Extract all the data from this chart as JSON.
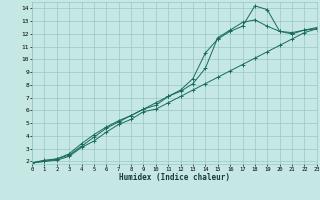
{
  "xlabel": "Humidex (Indice chaleur)",
  "bg_color": "#c5e8e5",
  "grid_color": "#9ac8c4",
  "line_color": "#1a6b5a",
  "xlim": [
    0,
    23
  ],
  "ylim": [
    1.8,
    14.5
  ],
  "xticks": [
    0,
    1,
    2,
    3,
    4,
    5,
    6,
    7,
    8,
    9,
    10,
    11,
    12,
    13,
    14,
    15,
    16,
    17,
    18,
    19,
    20,
    21,
    22,
    23
  ],
  "yticks": [
    2,
    3,
    4,
    5,
    6,
    7,
    8,
    9,
    10,
    11,
    12,
    13,
    14
  ],
  "series": [
    {
      "x": [
        0,
        1,
        2,
        3,
        4,
        5,
        6,
        7,
        8,
        9,
        10,
        11,
        12,
        13,
        14,
        15,
        16,
        17,
        18,
        19,
        20,
        21,
        22,
        23
      ],
      "y": [
        1.9,
        2.1,
        2.2,
        2.5,
        3.2,
        3.9,
        4.6,
        5.1,
        5.6,
        6.1,
        6.6,
        7.1,
        7.6,
        8.5,
        10.5,
        11.6,
        12.2,
        12.6,
        14.2,
        13.9,
        12.2,
        12.1,
        12.3,
        12.4
      ]
    },
    {
      "x": [
        0,
        1,
        2,
        3,
        4,
        5,
        6,
        7,
        8,
        9,
        10,
        11,
        12,
        13,
        14,
        15,
        16,
        17,
        18,
        19,
        20,
        21,
        22,
        23
      ],
      "y": [
        1.9,
        2.0,
        2.2,
        2.6,
        3.4,
        4.1,
        4.7,
        5.2,
        5.6,
        6.1,
        6.4,
        7.1,
        7.5,
        8.1,
        9.3,
        11.7,
        12.3,
        12.9,
        13.1,
        12.6,
        12.2,
        12.0,
        12.3,
        12.5
      ]
    },
    {
      "x": [
        0,
        1,
        2,
        3,
        4,
        5,
        6,
        7,
        8,
        9,
        10,
        11,
        12,
        13,
        14,
        15,
        16,
        17,
        18,
        19,
        20,
        21,
        22,
        23
      ],
      "y": [
        1.9,
        2.0,
        2.1,
        2.4,
        3.1,
        3.6,
        4.3,
        4.9,
        5.3,
        5.9,
        6.1,
        6.6,
        7.1,
        7.6,
        8.1,
        8.6,
        9.1,
        9.6,
        10.1,
        10.6,
        11.1,
        11.6,
        12.1,
        12.4
      ]
    }
  ]
}
